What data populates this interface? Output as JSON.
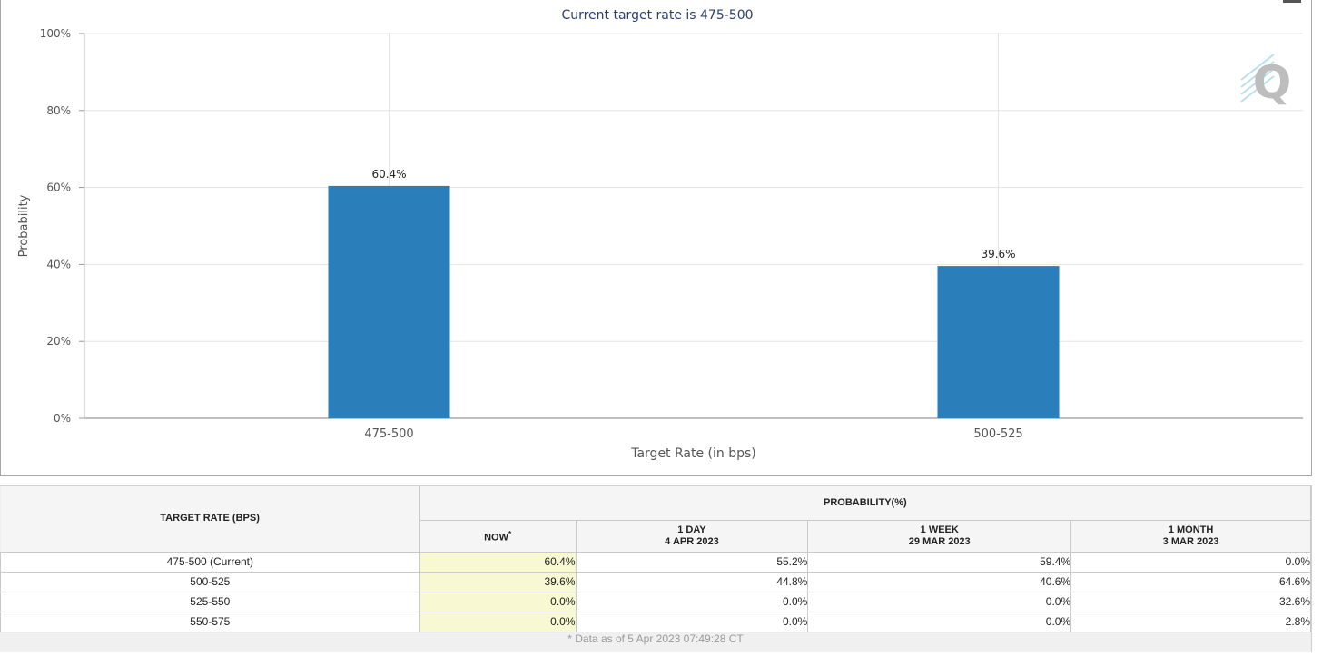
{
  "chart_data": {
    "type": "bar",
    "title": "Current target rate is 475-500",
    "xlabel": "Target Rate (in bps)",
    "ylabel": "Probability",
    "categories": [
      "475-500",
      "500-525"
    ],
    "values": [
      60.4,
      39.6
    ],
    "data_labels": [
      "60.4%",
      "39.6%"
    ],
    "ylim": [
      0,
      100
    ],
    "yticks": [
      0,
      20,
      40,
      60,
      80,
      100
    ],
    "ytick_labels": [
      "0%",
      "20%",
      "40%",
      "60%",
      "80%",
      "100%"
    ],
    "bar_color": "#2a7fba",
    "grid": true
  },
  "logo": {
    "letter": "Q"
  },
  "table": {
    "header_rate": "TARGET RATE (BPS)",
    "header_prob": "PROBABILITY(%)",
    "cols": [
      {
        "label": "NOW",
        "sup": "*",
        "sub": ""
      },
      {
        "label": "1 DAY",
        "sub": "4 APR 2023"
      },
      {
        "label": "1 WEEK",
        "sub": "29 MAR 2023"
      },
      {
        "label": "1 MONTH",
        "sub": "3 MAR 2023"
      }
    ],
    "rows": [
      {
        "rate": "475-500 (Current)",
        "vals": [
          "60.4%",
          "55.2%",
          "59.4%",
          "0.0%"
        ]
      },
      {
        "rate": "500-525",
        "vals": [
          "39.6%",
          "44.8%",
          "40.6%",
          "64.6%"
        ]
      },
      {
        "rate": "525-550",
        "vals": [
          "0.0%",
          "0.0%",
          "0.0%",
          "32.6%"
        ]
      },
      {
        "rate": "550-575",
        "vals": [
          "0.0%",
          "0.0%",
          "0.0%",
          "2.8%"
        ]
      }
    ],
    "footnote": "* Data as of 5 Apr 2023 07:49:28 CT"
  }
}
